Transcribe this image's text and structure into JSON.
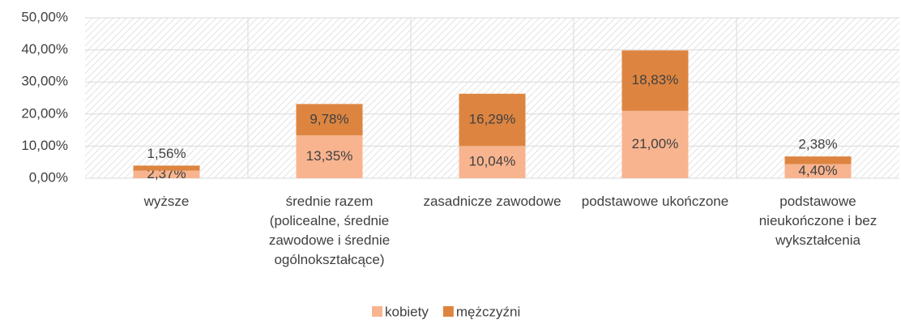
{
  "chart_data": {
    "type": "stacked_bar",
    "categories": [
      "wyższe",
      "średnie razem (policealne, średnie zawodowe i średnie ogólnokształcące)",
      "zasadnicze zawodowe",
      "podstawowe ukończone",
      "podstawowe nieukończone i bez wykształcenia"
    ],
    "series": [
      {
        "name": "kobiety",
        "color": "#f8b48f",
        "values": [
          2.37,
          13.35,
          10.04,
          21.0,
          4.4
        ],
        "value_labels": [
          "2,37%",
          "13,35%",
          "10,04%",
          "21,00%",
          "4,40%"
        ]
      },
      {
        "name": "mężczyźni",
        "color": "#dd8540",
        "values": [
          1.56,
          9.78,
          16.29,
          18.83,
          2.38
        ],
        "value_labels": [
          "1,56%",
          "9,78%",
          "16,29%",
          "18,83%",
          "2,38%"
        ]
      }
    ],
    "ylim": [
      0,
      50
    ],
    "yticks": [
      {
        "value": 0,
        "label": "0,00%"
      },
      {
        "value": 10,
        "label": "10,00%"
      },
      {
        "value": 20,
        "label": "20,00%"
      },
      {
        "value": 30,
        "label": "30,00%"
      },
      {
        "value": 40,
        "label": "40,00%"
      },
      {
        "value": 50,
        "label": "50,00%"
      }
    ],
    "grid": true,
    "legend": "bottom"
  }
}
